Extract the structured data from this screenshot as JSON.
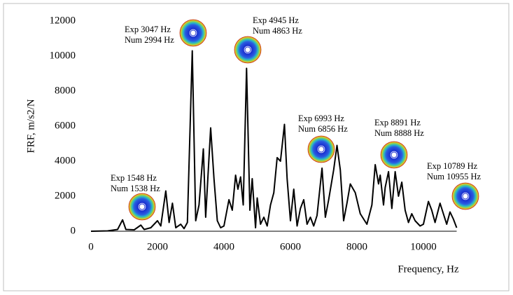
{
  "chart_data": {
    "type": "line",
    "x_label": "Frequency, Hz",
    "y_label": "FRF, m/s2/N",
    "x": [
      0,
      500,
      800,
      950,
      1050,
      1300,
      1500,
      1600,
      1800,
      2000,
      2100,
      2250,
      2350,
      2450,
      2550,
      2700,
      2800,
      2900,
      3047,
      3150,
      3250,
      3380,
      3450,
      3600,
      3700,
      3800,
      3900,
      4000,
      4150,
      4250,
      4350,
      4420,
      4500,
      4580,
      4680,
      4780,
      4850,
      4950,
      5000,
      5100,
      5200,
      5300,
      5400,
      5500,
      5600,
      5700,
      5820,
      5900,
      6000,
      6100,
      6200,
      6300,
      6400,
      6500,
      6600,
      6700,
      6800,
      6950,
      7050,
      7150,
      7300,
      7400,
      7500,
      7600,
      7700,
      7800,
      7950,
      8100,
      8300,
      8450,
      8550,
      8650,
      8700,
      8800,
      8850,
      8950,
      9050,
      9150,
      9250,
      9350,
      9450,
      9550,
      9650,
      9750,
      9900,
      10000,
      10150,
      10250,
      10350,
      10500,
      10600,
      10700,
      10800,
      10900,
      11000
    ],
    "values": [
      0,
      20,
      100,
      650,
      100,
      80,
      350,
      100,
      200,
      600,
      300,
      2300,
      500,
      1600,
      200,
      400,
      150,
      500,
      10300,
      600,
      1500,
      4700,
      800,
      5900,
      3000,
      600,
      200,
      300,
      1800,
      1200,
      3200,
      2400,
      3100,
      1500,
      9300,
      1200,
      3000,
      200,
      1900,
      400,
      800,
      300,
      1500,
      2200,
      4200,
      4000,
      6100,
      3000,
      600,
      2400,
      300,
      1300,
      1800,
      400,
      800,
      300,
      900,
      3600,
      800,
      1800,
      3500,
      4900,
      3500,
      600,
      1600,
      2700,
      2200,
      1000,
      400,
      1500,
      3800,
      2700,
      3200,
      1500,
      2500,
      3400,
      1300,
      3400,
      2000,
      2800,
      1200,
      500,
      1000,
      600,
      300,
      400,
      1700,
      1200,
      500,
      1600,
      1000,
      400,
      1100,
      700,
      200
    ],
    "color": "#000000",
    "xlim": [
      0,
      11000
    ],
    "xticks": [
      0,
      2000,
      4000,
      6000,
      8000,
      10000
    ],
    "ylim": [
      0,
      12000
    ],
    "yticks": [
      0,
      2000,
      4000,
      6000,
      8000,
      10000,
      12000
    ],
    "grid": false,
    "annotations": [
      {
        "lines": [
          "Exp 1548 Hz",
          "Num 1538 Hz"
        ]
      },
      {
        "lines": [
          "Exp 3047 Hz",
          "Num 2994 Hz"
        ]
      },
      {
        "lines": [
          "Exp 4945 Hz",
          "Num 4863 Hz"
        ]
      },
      {
        "lines": [
          "Exp 6993 Hz",
          "Num 6856 Hz"
        ]
      },
      {
        "lines": [
          "Exp 8891 Hz",
          "Num 8888 Hz"
        ]
      },
      {
        "lines": [
          "Exp 10789 Hz",
          "Num 10955 Hz"
        ]
      }
    ]
  }
}
